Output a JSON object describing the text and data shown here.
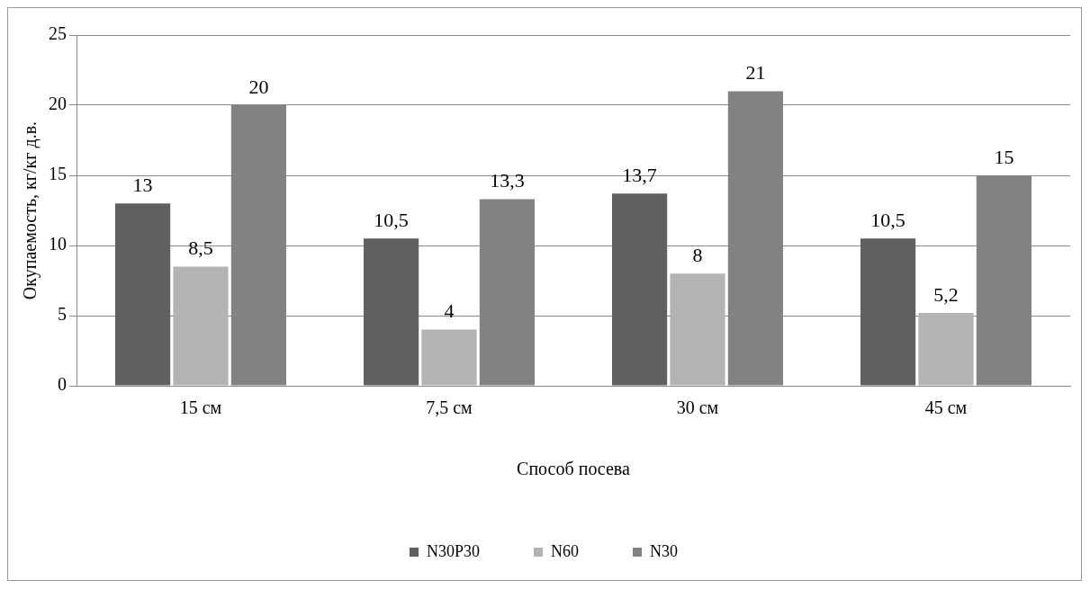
{
  "chart_data": {
    "type": "bar",
    "xlabel": "Способ посева",
    "ylabel": "Окупаемость, кг/кг д.в.",
    "categories": [
      "15 см",
      "7,5 см",
      "30 см",
      "45 см"
    ],
    "series": [
      {
        "name": "N30P30",
        "color": "#606060",
        "values": [
          13,
          10.5,
          13.7,
          10.5
        ],
        "value_labels": [
          "13",
          "10,5",
          "13,7",
          "10,5"
        ]
      },
      {
        "name": "N60",
        "color": "#b3b3b3",
        "values": [
          8.5,
          4,
          8,
          5.2
        ],
        "value_labels": [
          "8,5",
          "4",
          "8",
          "5,2"
        ]
      },
      {
        "name": "N30",
        "color": "#828282",
        "values": [
          20,
          13.3,
          21,
          15
        ],
        "value_labels": [
          "20",
          "13,3",
          "21",
          "15"
        ]
      }
    ],
    "ylim": [
      0,
      25
    ],
    "yticks": [
      0,
      5,
      10,
      15,
      20,
      25
    ],
    "grid": "y",
    "legend": "bottom"
  }
}
